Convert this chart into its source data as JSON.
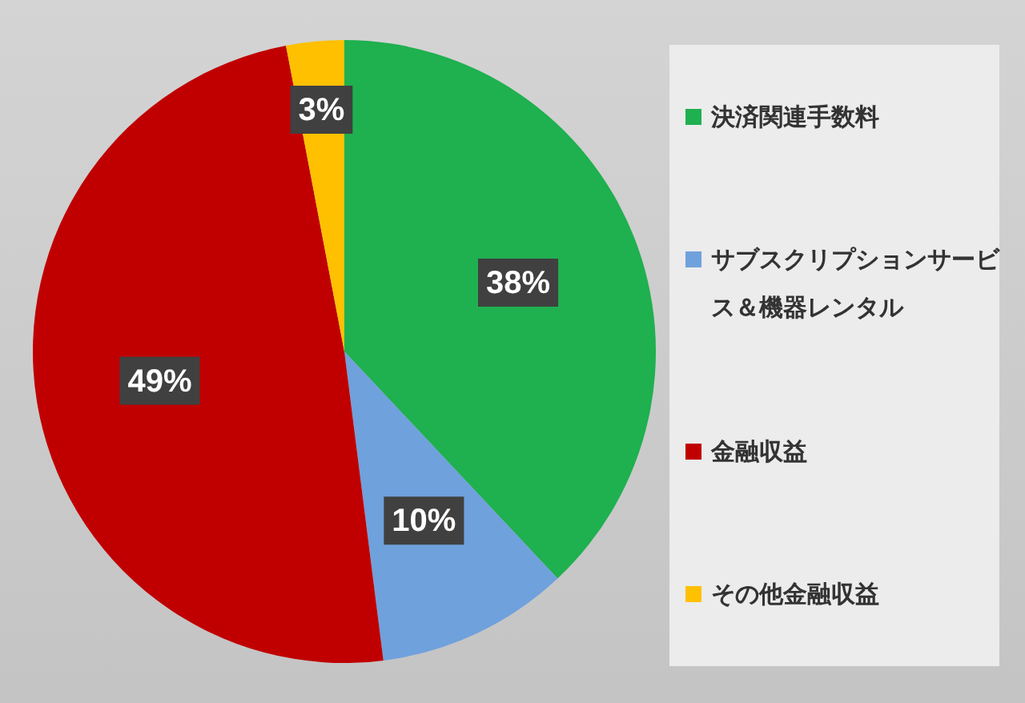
{
  "chart_data": {
    "type": "pie",
    "categories": [
      "決済関連手数料",
      "サブスクリプションサービス＆機器レンタル",
      "金融収益",
      "その他金融収益"
    ],
    "values": [
      38,
      10,
      49,
      3
    ],
    "colors": [
      "#1fb04f",
      "#6fa1dc",
      "#c00000",
      "#ffc000"
    ],
    "value_labels": [
      "38%",
      "10%",
      "49%",
      "3%"
    ],
    "legend": "right"
  }
}
